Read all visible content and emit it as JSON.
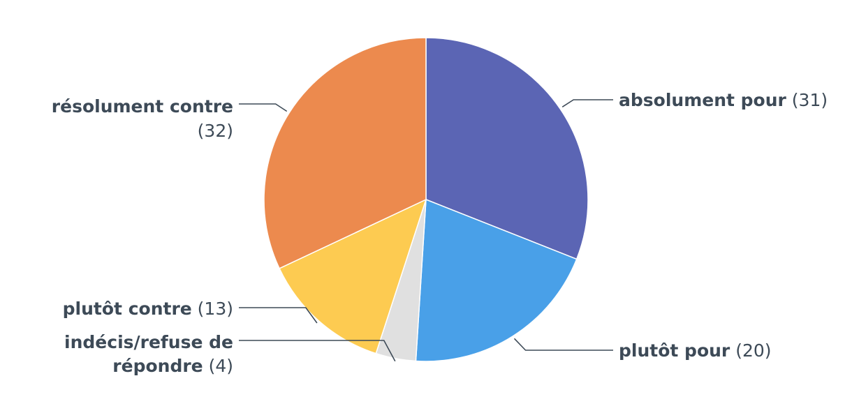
{
  "chart_data": {
    "type": "pie",
    "slices": [
      {
        "label": "absolument pour",
        "value": 31,
        "color": "#5b65b4"
      },
      {
        "label": "plutôt pour",
        "value": 20,
        "color": "#49a0e8"
      },
      {
        "label": "indécis/refuse de répondre",
        "value": 4,
        "color": "#e0e0e0"
      },
      {
        "label": "plutôt contre",
        "value": 13,
        "color": "#fdcb51"
      },
      {
        "label": "résolument contre",
        "value": 32,
        "color": "#ec8a4e"
      }
    ],
    "start_angle": "top",
    "direction": "clockwise",
    "label_format": "name (value)"
  }
}
